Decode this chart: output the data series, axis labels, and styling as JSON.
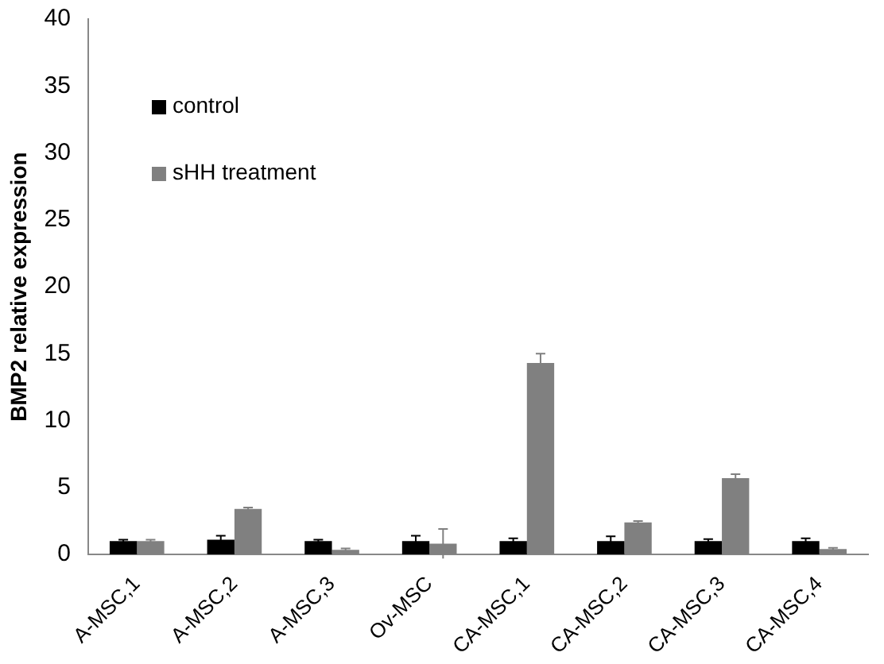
{
  "chart_data": {
    "type": "bar",
    "ylabel": "BMP2 relative expression",
    "categories": [
      "A-MSC,1",
      "A-MSC,2",
      "A-MSC,3",
      "Ov-MSC",
      "CA-MSC,1",
      "CA-MSC,2",
      "CA-MSC,3",
      "CA-MSC,4"
    ],
    "series": [
      {
        "name": "control",
        "color": "#000000",
        "values": [
          1.0,
          1.1,
          1.0,
          1.0,
          1.0,
          1.0,
          1.0,
          1.0
        ],
        "errors": [
          0.1,
          0.3,
          0.1,
          0.4,
          0.2,
          0.35,
          0.15,
          0.2
        ]
      },
      {
        "name": "sHH treatment",
        "color": "#808080",
        "values": [
          1.0,
          3.4,
          0.35,
          0.8,
          14.3,
          2.4,
          5.7,
          0.4
        ],
        "errors": [
          0.1,
          0.1,
          0.1,
          1.1,
          0.7,
          0.1,
          0.3,
          0.1
        ]
      }
    ],
    "ylim": [
      0,
      40
    ],
    "yticks": [
      0,
      5,
      10,
      15,
      20,
      25,
      30,
      35,
      40
    ],
    "grid": false,
    "legend": "top left"
  }
}
